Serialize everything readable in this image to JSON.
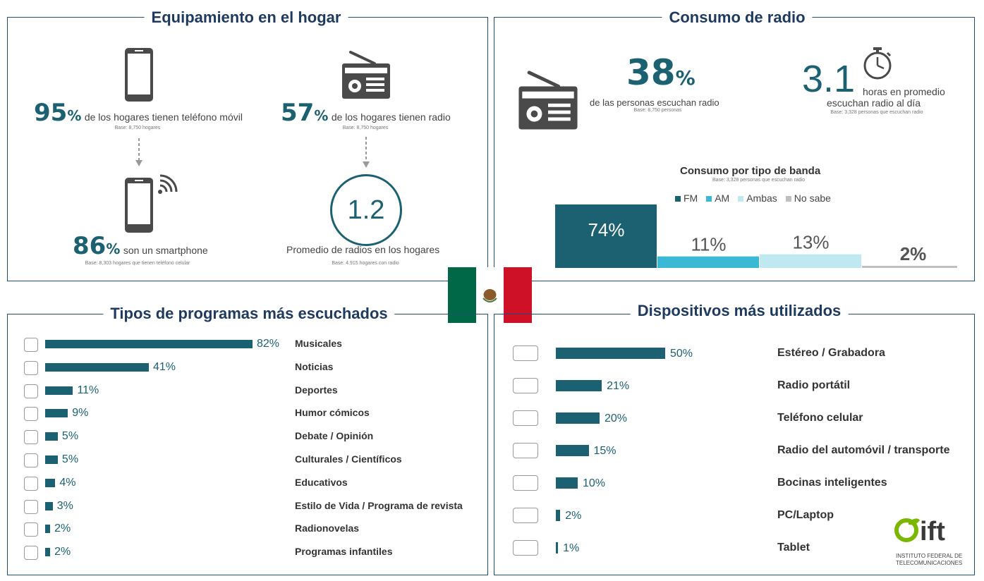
{
  "equipamiento": {
    "title": "Equipamiento en el hogar",
    "movil_pct": "95",
    "movil_text": "de los hogares tienen teléfono móvil",
    "movil_base": "Base: 8,750 hogares",
    "radio_pct": "57",
    "radio_text": "de los hogares tienen radio",
    "radio_base": "Base: 8,750 hogares",
    "smart_pct": "86",
    "smart_text": "son un smartphone",
    "smart_base": "Base: 8,303 hogares que tienen teléfono celular",
    "promedio_value": "1.2",
    "promedio_text": "Promedio de radios en los hogares",
    "promedio_base": "Base: 4,915 hogares con radio",
    "pct_sign": "%"
  },
  "consumo": {
    "title": "Consumo de radio",
    "personas_pct": "38",
    "personas_text": "de las personas escuchan radio",
    "personas_base": "Base: 8,750 personas",
    "horas_value": "3.1",
    "horas_text1": "horas en promedio",
    "horas_text2": "escuchan radio al día",
    "horas_base": "Base: 3,328 personas que escuchan radio",
    "banda_title": "Consumo por tipo de banda",
    "banda_base": "Base: 3,328 personas que escuchan radio",
    "pct_sign": "%"
  },
  "programas": {
    "title": "Tipos de programas más escuchados"
  },
  "dispositivos": {
    "title": "Dispositivos más utilizados"
  },
  "logo": {
    "name": "ift",
    "line1": "INSTITUTO FEDERAL DE",
    "line2": "TELECOMUNICACIONES"
  },
  "colors": {
    "teal": "#1b6172",
    "fm": "#1b6172",
    "am": "#3bb8d4",
    "ambas": "#bfe8f1",
    "nosabe": "#bfbfbf",
    "title": "#1f3a5f",
    "flag_green": "#006847",
    "flag_red": "#ce1126"
  },
  "chart_data": [
    {
      "type": "bar",
      "title": "Consumo por tipo de banda",
      "categories": [
        "FM",
        "AM",
        "Ambas",
        "No sabe"
      ],
      "values": [
        74,
        11,
        13,
        2
      ],
      "labels": [
        "74%",
        "11%",
        "13%",
        "2%"
      ],
      "legend_position": "top"
    },
    {
      "type": "bar",
      "title": "Tipos de programas más escuchados",
      "orientation": "horizontal",
      "categories": [
        "Musicales",
        "Noticias",
        "Deportes",
        "Humor cómicos",
        "Debate / Opinión",
        "Culturales / Científicos",
        "Educativos",
        "Estilo de Vida / Programa de revista",
        "Radionovelas",
        "Programas infantiles"
      ],
      "values": [
        82,
        41,
        11,
        9,
        5,
        5,
        4,
        3,
        2,
        2
      ],
      "labels": [
        "82%",
        "41%",
        "11%",
        "9%",
        "5%",
        "5%",
        "4%",
        "3%",
        "2%",
        "2%"
      ]
    },
    {
      "type": "bar",
      "title": "Dispositivos más utilizados",
      "orientation": "horizontal",
      "categories": [
        "Estéreo / Grabadora",
        "Radio portátil",
        "Teléfono celular",
        "Radio del automóvil / transporte",
        "Bocinas inteligentes",
        "PC/Laptop",
        "Tablet"
      ],
      "values": [
        50,
        21,
        20,
        15,
        10,
        2,
        1
      ],
      "labels": [
        "50%",
        "21%",
        "20%",
        "15%",
        "10%",
        "2%",
        "1%"
      ]
    }
  ]
}
